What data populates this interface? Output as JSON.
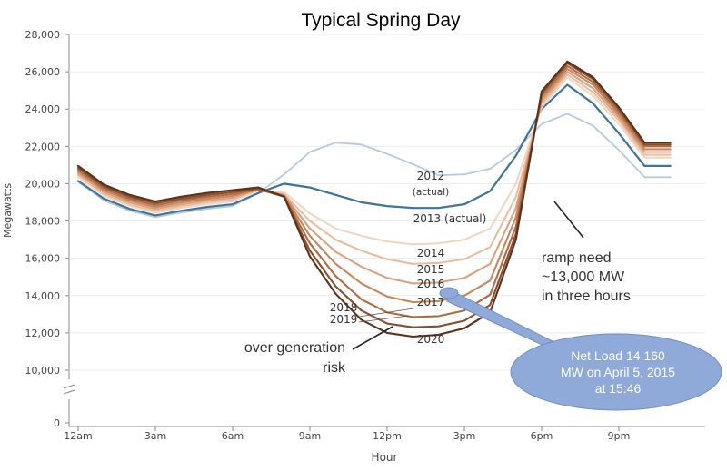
{
  "chart_data": {
    "type": "line",
    "title": "Typical Spring Day",
    "xlabel": "Hour",
    "ylabel": "Megawatts",
    "ylim": [
      10000,
      28000
    ],
    "y_break_label": "0",
    "y_ticks": [
      "28,000",
      "26,000",
      "24,000",
      "22,000",
      "20,000",
      "18,000",
      "16,000",
      "14,000",
      "12,000",
      "10,000"
    ],
    "y_tick_values": [
      28000,
      26000,
      24000,
      22000,
      20000,
      18000,
      16000,
      14000,
      12000,
      10000
    ],
    "x_tick_labels": [
      "12am",
      "3am",
      "6am",
      "9am",
      "12pm",
      "3pm",
      "6pm",
      "9pm"
    ],
    "x_tick_hours": [
      0,
      3,
      6,
      9,
      12,
      15,
      18,
      21
    ],
    "hours": [
      0,
      1,
      2,
      3,
      4,
      5,
      6,
      7,
      8,
      9,
      10,
      11,
      12,
      13,
      14,
      15,
      16,
      17,
      18,
      19,
      20,
      21,
      22,
      23
    ],
    "series": [
      {
        "name": "2012 (actual)",
        "color": "#b7c9dc",
        "values": [
          20100,
          19100,
          18550,
          18200,
          18450,
          18650,
          18800,
          19500,
          20500,
          21700,
          22200,
          22100,
          21600,
          21050,
          20450,
          20500,
          20800,
          21800,
          23200,
          23750,
          23100,
          21800,
          20350,
          20350
        ]
      },
      {
        "name": "2013 (actual)",
        "color": "#3f7497",
        "values": [
          20150,
          19200,
          18650,
          18300,
          18550,
          18750,
          18900,
          19500,
          20000,
          19800,
          19400,
          19000,
          18800,
          18700,
          18700,
          18900,
          19600,
          21500,
          24000,
          25300,
          24300,
          22700,
          20950,
          20950
        ]
      },
      {
        "name": "2014",
        "color": "#f0d7c4",
        "values": [
          20350,
          19350,
          18800,
          18450,
          18700,
          18900,
          19050,
          19650,
          19550,
          18400,
          17600,
          17200,
          16900,
          16750,
          16800,
          17000,
          17600,
          20000,
          24100,
          25700,
          24700,
          23200,
          21400,
          21400
        ]
      },
      {
        "name": "2015",
        "color": "#e7bea3",
        "values": [
          20450,
          19450,
          18900,
          18550,
          18800,
          19000,
          19150,
          19650,
          19450,
          18000,
          17000,
          16400,
          15950,
          15700,
          15750,
          15950,
          16600,
          19300,
          24250,
          25850,
          24900,
          23400,
          21550,
          21550
        ]
      },
      {
        "name": "2016",
        "color": "#d8a27f",
        "values": [
          20550,
          19550,
          19000,
          18650,
          18900,
          19100,
          19250,
          19700,
          19400,
          17600,
          16350,
          15550,
          14950,
          14650,
          14700,
          14950,
          15700,
          18700,
          24400,
          26000,
          25100,
          23550,
          21700,
          21700
        ]
      },
      {
        "name": "2017",
        "color": "#c6875f",
        "values": [
          20650,
          19650,
          19100,
          18750,
          19000,
          19200,
          19350,
          19700,
          19350,
          17200,
          15700,
          14650,
          13950,
          13650,
          13700,
          14000,
          14800,
          18200,
          24550,
          26150,
          25300,
          23700,
          21850,
          21850
        ]
      },
      {
        "name": "2018",
        "color": "#ad6c44",
        "values": [
          20750,
          19750,
          19200,
          18850,
          19100,
          19300,
          19450,
          19700,
          19300,
          16800,
          15050,
          13800,
          13100,
          12850,
          12900,
          13200,
          14050,
          17700,
          24700,
          26300,
          25450,
          23850,
          22000,
          22000
        ]
      },
      {
        "name": "2019",
        "color": "#8a4e2d",
        "values": [
          20850,
          19850,
          19300,
          18950,
          19200,
          19400,
          19550,
          19750,
          19300,
          16400,
          14500,
          13200,
          12500,
          12300,
          12350,
          12650,
          13500,
          17300,
          24850,
          26450,
          25600,
          24000,
          22100,
          22100
        ]
      },
      {
        "name": "2020",
        "color": "#5a311d",
        "values": [
          20950,
          19950,
          19400,
          19050,
          19300,
          19500,
          19650,
          19800,
          19300,
          16100,
          14100,
          12700,
          12000,
          11800,
          11900,
          12250,
          13100,
          17000,
          24950,
          26550,
          25700,
          24100,
          22200,
          22200
        ]
      }
    ],
    "series_labels": [
      {
        "text": "2012",
        "series": "2012 (actual)"
      },
      {
        "text": "(actual)",
        "series": "2012 (actual)"
      },
      {
        "text": "2013 (actual)",
        "series": "2013 (actual)"
      },
      {
        "text": "2014",
        "series": "2014"
      },
      {
        "text": "2015",
        "series": "2015"
      },
      {
        "text": "2016",
        "series": "2016"
      },
      {
        "text": "2017",
        "series": "2017"
      },
      {
        "text": "2018",
        "series": "2018"
      },
      {
        "text": "2019",
        "series": "2019"
      },
      {
        "text": "2020",
        "series": "2020"
      }
    ],
    "annotations": {
      "ramp_line1": "ramp need",
      "ramp_line2": "~13,000 MW",
      "ramp_line3": "in three hours",
      "overgen_line1": "over generation",
      "overgen_line2": "risk",
      "callout_line1": "Net Load 14,160",
      "callout_line2": "MW on April 5, 2015",
      "callout_line3": "at 15:46",
      "callout_color": "#8fa9d8",
      "callout_stroke": "#6f8fc4"
    }
  }
}
